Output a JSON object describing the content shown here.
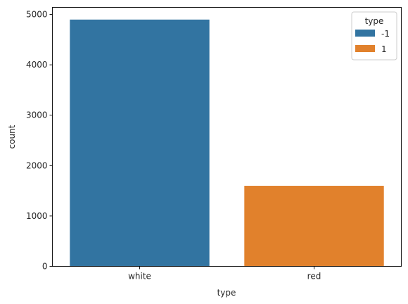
{
  "chart_data": {
    "type": "bar",
    "title": "",
    "xlabel": "type",
    "ylabel": "count",
    "categories": [
      "white",
      "red"
    ],
    "values": [
      4898,
      1599
    ],
    "bar_colors": [
      "#3274a1",
      "#e1812c"
    ],
    "ylim": [
      0,
      5140
    ],
    "yticks": [
      0,
      1000,
      2000,
      3000,
      4000,
      5000
    ],
    "grid": false,
    "legend": {
      "title": "type",
      "placement": "top-right",
      "entries": [
        {
          "label": "-1",
          "color": "#3274a1"
        },
        {
          "label": "1",
          "color": "#e1812c"
        }
      ]
    }
  }
}
